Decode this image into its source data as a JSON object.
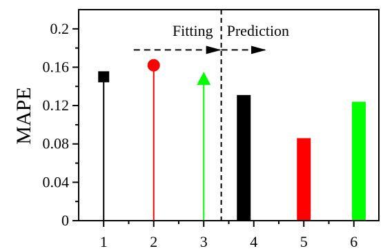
{
  "chart_data": {
    "type": "bar",
    "ylabel": "MAPE",
    "xlabel": "",
    "xlim": [
      0.5,
      6.5
    ],
    "ylim": [
      0,
      0.22
    ],
    "x_ticks": [
      "1",
      "2",
      "3",
      "4",
      "5",
      "6"
    ],
    "y_ticks": [
      "0",
      "0.04",
      "0.08",
      "0.12",
      "0.16",
      "0.2"
    ],
    "grid": false,
    "phases": [
      {
        "label": "Fitting",
        "x_range": [
          1.6,
          3.35
        ]
      },
      {
        "label": "Prediction",
        "x_range": [
          3.35,
          4.25
        ]
      }
    ],
    "fitting_stems": [
      {
        "x": 1,
        "y": 0.15,
        "marker": "square",
        "color": "#000000"
      },
      {
        "x": 2,
        "y": 0.162,
        "marker": "circle",
        "color": "#ff0000"
      },
      {
        "x": 3,
        "y": 0.148,
        "marker": "triangle",
        "color": "#00ff00"
      }
    ],
    "prediction_bars": [
      {
        "x": 3.8,
        "y": 0.131,
        "color": "#000000"
      },
      {
        "x": 5,
        "y": 0.086,
        "color": "#ff0000"
      },
      {
        "x": 6.1,
        "y": 0.124,
        "color": "#00ff00"
      }
    ],
    "divider_x": 3.35
  }
}
